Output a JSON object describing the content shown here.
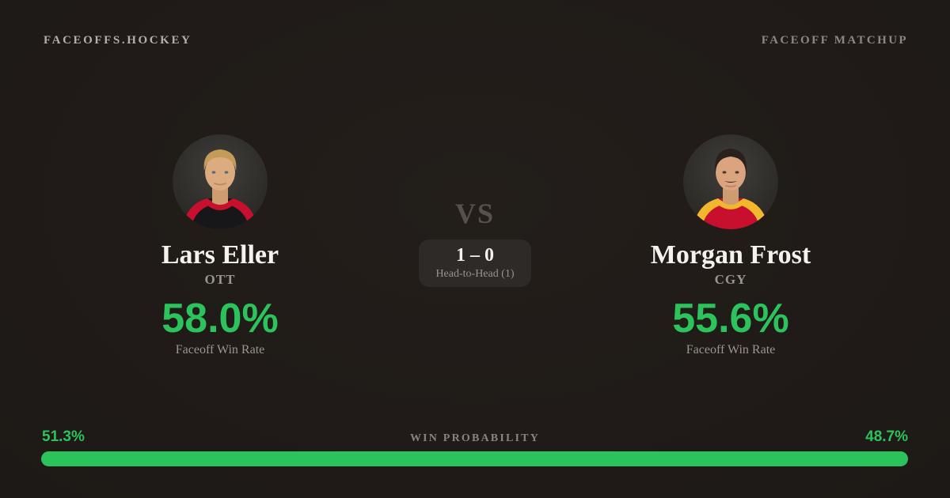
{
  "page": {
    "background": "#201b18",
    "accent_green": "#2cc35c"
  },
  "header": {
    "brand": "FACEOFFS.HOCKEY",
    "matchup_label": "FACEOFF MATCHUP"
  },
  "center": {
    "vs_label": "VS",
    "h2h_score": "1 – 0",
    "h2h_label": "Head-to-Head (1)"
  },
  "players": {
    "left": {
      "name": "Lars Eller",
      "team": "OTT",
      "win_rate": "58.0%",
      "stat_label": "Faceoff Win Rate",
      "jersey_colors": [
        "#17171a",
        "#c8102e"
      ]
    },
    "right": {
      "name": "Morgan Frost",
      "team": "CGY",
      "win_rate": "55.6%",
      "stat_label": "Faceoff Win Rate",
      "jersey_colors": [
        "#c8102e",
        "#f1b82d"
      ]
    }
  },
  "win_probability": {
    "title": "WIN PROBABILITY",
    "left_label": "51.3%",
    "right_label": "48.7%",
    "left_value": 51.3,
    "right_value": 48.7,
    "bar_color": "#2cc35c"
  }
}
